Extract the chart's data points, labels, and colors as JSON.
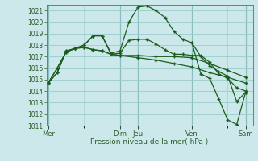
{
  "background_color": "#cce8ea",
  "grid_color": "#99cccc",
  "line_color": "#1a5c1a",
  "marker_color": "#1a5c1a",
  "xlabel": "Pression niveau de la mer( hPa )",
  "ylim": [
    1011,
    1021.5
  ],
  "yticks": [
    1011,
    1012,
    1013,
    1014,
    1015,
    1016,
    1017,
    1018,
    1019,
    1020,
    1021
  ],
  "day_labels": [
    "Mer",
    "Dim",
    "Jeu",
    "Ven",
    "Sam"
  ],
  "day_positions": [
    0,
    8,
    10,
    16,
    22
  ],
  "series": [
    {
      "x": [
        0,
        1,
        2,
        3,
        4,
        5,
        6,
        7,
        8,
        9,
        10,
        11,
        12,
        13,
        14,
        15,
        16,
        17,
        18,
        19,
        20,
        21,
        22
      ],
      "y": [
        1014.7,
        1015.6,
        1017.5,
        1017.7,
        1018.0,
        1018.8,
        1018.8,
        1017.3,
        1017.5,
        1020.0,
        1021.3,
        1021.4,
        1021.0,
        1020.4,
        1019.2,
        1018.5,
        1018.2,
        1017.0,
        1016.2,
        1015.7,
        1015.3,
        1013.1,
        1013.9
      ]
    },
    {
      "x": [
        0,
        1,
        2,
        3,
        4,
        5,
        6,
        7,
        8,
        9,
        10,
        11,
        12,
        13,
        14,
        15,
        16,
        17,
        18,
        19,
        20,
        21,
        22
      ],
      "y": [
        1014.7,
        1015.6,
        1017.5,
        1017.7,
        1018.0,
        1018.8,
        1018.8,
        1017.2,
        1017.3,
        1018.4,
        1018.5,
        1018.5,
        1018.1,
        1017.6,
        1017.2,
        1017.2,
        1017.1,
        1017.1,
        1016.5,
        1015.5,
        1015.1,
        1014.3,
        1014.0
      ]
    },
    {
      "x": [
        0,
        1,
        2,
        3,
        4,
        5,
        6,
        7,
        8,
        10,
        12,
        14,
        16,
        18,
        20,
        22
      ],
      "y": [
        1014.7,
        1016.0,
        1017.4,
        1017.7,
        1017.8,
        1017.6,
        1017.5,
        1017.2,
        1017.1,
        1017.1,
        1017.0,
        1017.0,
        1016.9,
        1016.4,
        1015.8,
        1015.2
      ]
    },
    {
      "x": [
        0,
        1,
        2,
        3,
        4,
        5,
        6,
        7,
        8,
        10,
        12,
        14,
        16,
        18,
        20,
        22
      ],
      "y": [
        1014.7,
        1016.0,
        1017.4,
        1017.7,
        1017.8,
        1017.6,
        1017.5,
        1017.2,
        1017.1,
        1016.9,
        1016.7,
        1016.4,
        1016.1,
        1015.6,
        1015.2,
        1014.7
      ]
    },
    {
      "x": [
        16,
        17,
        18,
        19,
        20,
        21,
        22
      ],
      "y": [
        1018.2,
        1015.5,
        1015.1,
        1013.3,
        1011.5,
        1011.1,
        1013.9
      ]
    }
  ],
  "vertical_lines": [
    0,
    8,
    10,
    16,
    22
  ],
  "xlim": [
    -0.2,
    22.8
  ]
}
